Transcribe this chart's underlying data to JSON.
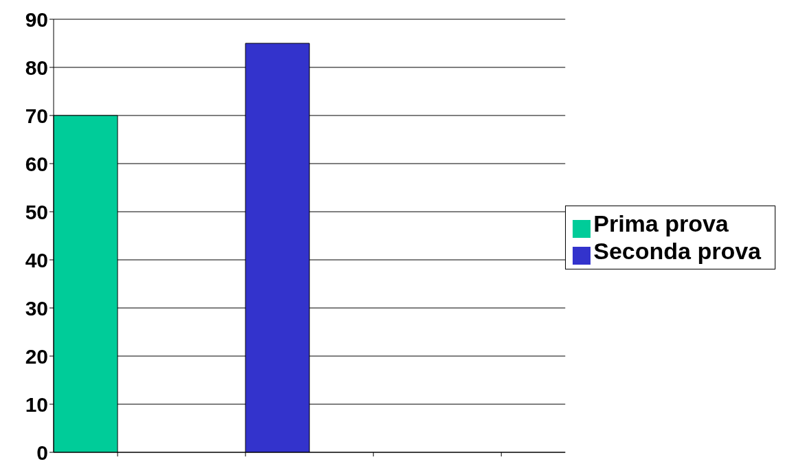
{
  "chart_data": {
    "type": "bar",
    "categories": [
      null,
      null,
      null,
      null
    ],
    "series": [
      {
        "name": "Prima prova",
        "color": "#00cc99",
        "values": [
          70,
          null,
          null,
          null
        ]
      },
      {
        "name": "Seconda prova",
        "color": "#3333cc",
        "values": [
          null,
          85,
          null,
          null
        ]
      }
    ],
    "ylim": [
      0,
      90
    ],
    "yticks": [
      0,
      10,
      20,
      30,
      40,
      50,
      60,
      70,
      80,
      90
    ],
    "grid": "y",
    "legend": "right"
  }
}
